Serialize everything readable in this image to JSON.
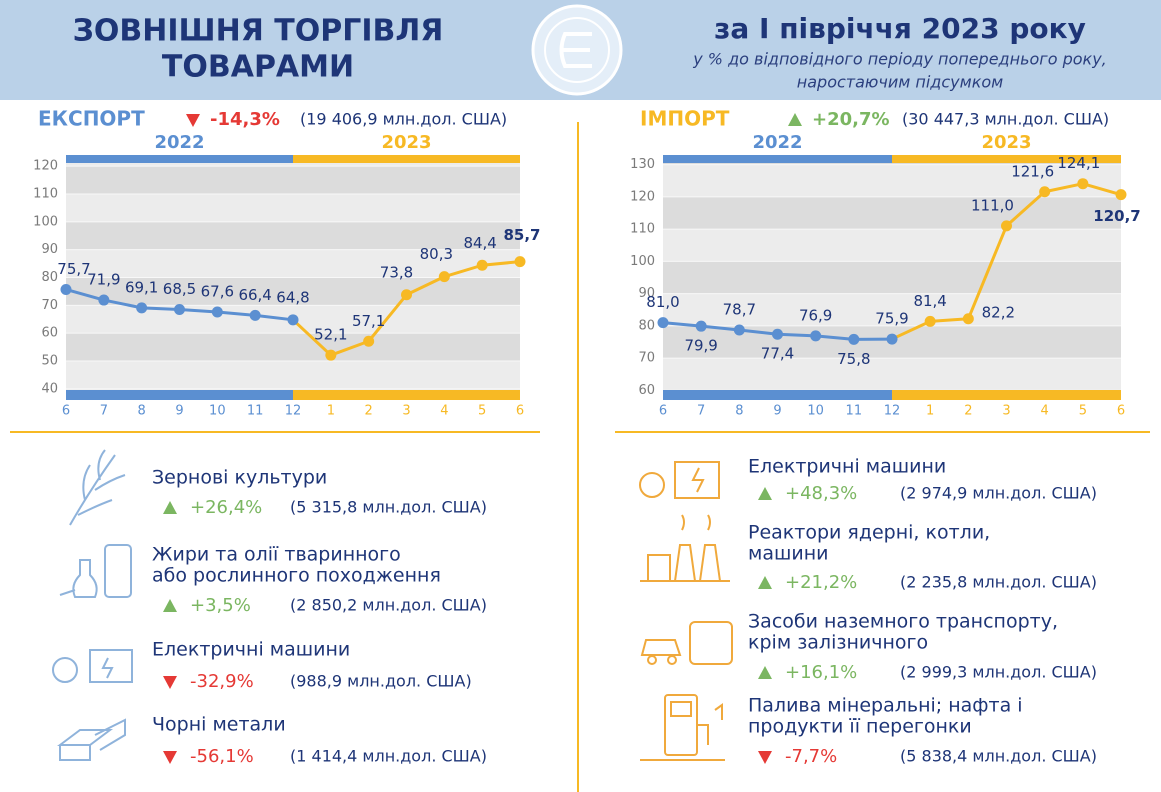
{
  "header": {
    "title": [
      "ЗОВНІШНЯ ТОРГІВЛЯ",
      "ТОВАРАМИ"
    ],
    "period": "за I півріччя 2023 року",
    "subtitle": [
      "у % до відповідного періоду попереднього року,",
      "наростаючим підсумком"
    ]
  },
  "chart_data": [
    {
      "type": "line",
      "title": "ЕКСПОРТ",
      "title_color": "#5b8fd1",
      "change": "-14,3%",
      "total": "(19 406,9 млн.дол. США)",
      "years": [
        "2022",
        "2023"
      ],
      "categories": [
        "6",
        "7",
        "8",
        "9",
        "10",
        "11",
        "12",
        "1",
        "2",
        "3",
        "4",
        "5",
        "6"
      ],
      "values": [
        75.7,
        71.9,
        69.1,
        68.5,
        67.6,
        66.4,
        64.8,
        52.1,
        57.1,
        73.8,
        80.3,
        84.4,
        85.7
      ],
      "value_labels": [
        "75,7",
        "71,9",
        "69,1",
        "68,5",
        "67,6",
        "66,4",
        "64,8",
        "52,1",
        "57,1",
        "73,8",
        "80,3",
        "84,4",
        "85,7"
      ],
      "colors": [
        "#5b8fd1",
        "#5b8fd1",
        "#5b8fd1",
        "#5b8fd1",
        "#5b8fd1",
        "#5b8fd1",
        "#5b8fd1",
        "#f7b924",
        "#f7b924",
        "#f7b924",
        "#f7b924",
        "#f7b924",
        "#f7b924"
      ],
      "ylim": [
        36,
        124
      ],
      "yticks": [
        40,
        50,
        60,
        70,
        80,
        90,
        100,
        110,
        120
      ],
      "grid": true
    },
    {
      "type": "line",
      "title": "ІМПОРТ",
      "title_color": "#f7b924",
      "change": "+20,7%",
      "total": "(30 447,3 млн.дол. США)",
      "years": [
        "2022",
        "2023"
      ],
      "categories": [
        "6",
        "7",
        "8",
        "9",
        "10",
        "11",
        "12",
        "1",
        "2",
        "3",
        "4",
        "5",
        "6"
      ],
      "values": [
        81.0,
        79.9,
        78.7,
        77.4,
        76.9,
        75.8,
        75.9,
        81.4,
        82.2,
        111.0,
        121.6,
        124.1,
        120.7
      ],
      "value_labels": [
        "81,0",
        "79,9",
        "78,7",
        "77,4",
        "76,9",
        "75,8",
        "75,9",
        "81,4",
        "82,2",
        "111,0",
        "121,6",
        "124,1",
        "120,7"
      ],
      "colors": [
        "#5b8fd1",
        "#5b8fd1",
        "#5b8fd1",
        "#5b8fd1",
        "#5b8fd1",
        "#5b8fd1",
        "#5b8fd1",
        "#f7b924",
        "#f7b924",
        "#f7b924",
        "#f7b924",
        "#f7b924",
        "#f7b924"
      ],
      "ylim": [
        57,
        133
      ],
      "yticks": [
        60,
        70,
        80,
        90,
        100,
        110,
        120,
        130
      ],
      "grid": true
    }
  ],
  "export_items": [
    {
      "name": [
        "Зернові культури"
      ],
      "change": "+26,4%",
      "amount": "(5 315,8 млн.дол. США)"
    },
    {
      "name": [
        "Жири та олії тваринного",
        "або рослинного походження"
      ],
      "change": "+3,5%",
      "amount": "(2 850,2 млн.дол. США)"
    },
    {
      "name": [
        "Електричні машини"
      ],
      "change": "-32,9%",
      "amount": "(988,9 млн.дол. США)"
    },
    {
      "name": [
        "Чорні метали"
      ],
      "change": "-56,1%",
      "amount": "(1 414,4 млн.дол. США)"
    }
  ],
  "import_items": [
    {
      "name": [
        "Електричні машини"
      ],
      "change": "+48,3%",
      "amount": "(2 974,9 млн.дол. США)"
    },
    {
      "name": [
        "Реактори ядерні, котли,",
        "машини"
      ],
      "change": "+21,2%",
      "amount": "(2 235,8 млн.дол. США)"
    },
    {
      "name": [
        "Засоби наземного транспорту,",
        "крім залізничного"
      ],
      "change": "+16,1%",
      "amount": "(2 999,3 млн.дол. США)"
    },
    {
      "name": [
        "Палива мінеральні; нафта і",
        "продукти її перегонки"
      ],
      "change": "-7,7%",
      "amount": "(5 838,4 млн.дол. США)"
    }
  ]
}
